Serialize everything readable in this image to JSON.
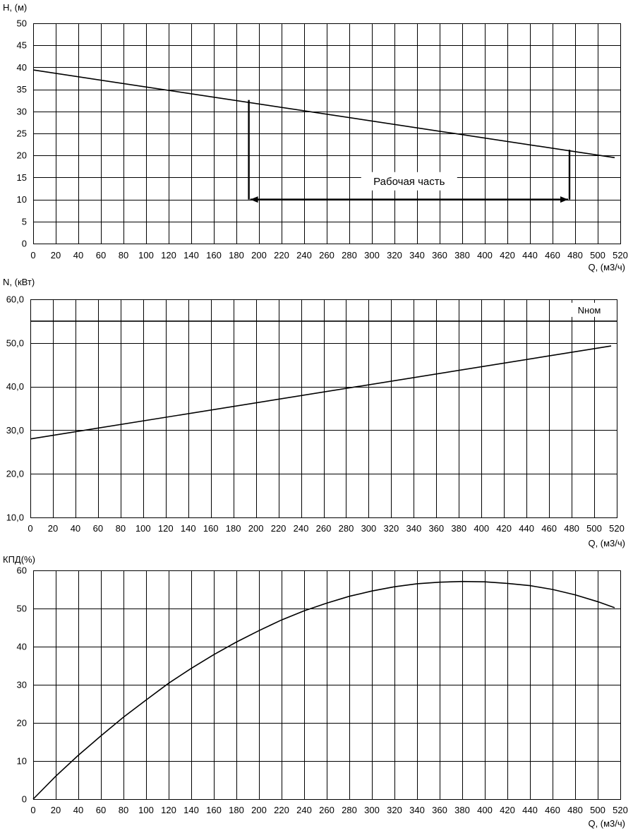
{
  "chart_data": [
    {
      "type": "line",
      "ylabel": "H, (м)",
      "xlabel": "Q, (м3/ч)",
      "xlim": [
        0,
        520
      ],
      "ylim": [
        0,
        50
      ],
      "xticks": [
        0,
        20,
        40,
        60,
        80,
        100,
        120,
        140,
        160,
        180,
        200,
        220,
        240,
        260,
        280,
        300,
        320,
        340,
        360,
        380,
        400,
        420,
        440,
        460,
        480,
        500,
        520
      ],
      "yticks": [
        0,
        5,
        10,
        15,
        20,
        25,
        30,
        35,
        40,
        45,
        50
      ],
      "tick_labels_y": [
        "0",
        "5",
        "10",
        "15",
        "20",
        "25",
        "30",
        "35",
        "40",
        "45",
        "50"
      ],
      "grid": true,
      "series": [
        {
          "x": [
            0,
            515
          ],
          "y": [
            39.4,
            19.5
          ]
        }
      ],
      "annotation": {
        "text": "Рабочая часть",
        "range_x": [
          191,
          475
        ],
        "arrow_y": 10,
        "top_y": [
          32.6,
          21.3
        ]
      }
    },
    {
      "type": "line",
      "ylabel": "N, (кВт)",
      "xlabel": "Q, (м3/ч)",
      "xlim": [
        0,
        520
      ],
      "ylim": [
        10,
        60
      ],
      "xticks": [
        0,
        20,
        40,
        60,
        80,
        100,
        120,
        140,
        160,
        180,
        200,
        220,
        240,
        260,
        280,
        300,
        320,
        340,
        360,
        380,
        400,
        420,
        440,
        460,
        480,
        500,
        520
      ],
      "yticks": [
        10,
        20,
        30,
        40,
        50,
        60
      ],
      "tick_labels_y": [
        "10,0",
        "20,0",
        "30,0",
        "40,0",
        "50,0",
        "60,0"
      ],
      "grid": true,
      "series": [
        {
          "x": [
            0,
            515
          ],
          "y": [
            28.0,
            49.3
          ]
        }
      ],
      "reference_line": {
        "label": "Nном",
        "y": 55
      }
    },
    {
      "type": "line",
      "ylabel": "КПД(%)",
      "xlabel": "Q, (м3/ч)",
      "xlim": [
        0,
        520
      ],
      "ylim": [
        0,
        60
      ],
      "xticks": [
        0,
        20,
        40,
        60,
        80,
        100,
        120,
        140,
        160,
        180,
        200,
        220,
        240,
        260,
        280,
        300,
        320,
        340,
        360,
        380,
        400,
        420,
        440,
        460,
        480,
        500,
        520
      ],
      "yticks": [
        0,
        10,
        20,
        30,
        40,
        50,
        60
      ],
      "tick_labels_y": [
        "0",
        "10",
        "20",
        "30",
        "40",
        "50",
        "60"
      ],
      "grid": true,
      "series": [
        {
          "x": [
            0,
            20,
            40,
            60,
            80,
            100,
            120,
            140,
            160,
            180,
            200,
            220,
            240,
            260,
            280,
            300,
            320,
            340,
            360,
            380,
            400,
            420,
            440,
            460,
            480,
            500,
            515
          ],
          "y": [
            0,
            6,
            11.5,
            16.6,
            21.5,
            26,
            30.4,
            34.3,
            37.9,
            41.2,
            44.2,
            47,
            49.4,
            51.4,
            53.2,
            54.6,
            55.7,
            56.5,
            56.9,
            57.1,
            57,
            56.6,
            56,
            55,
            53.6,
            51.8,
            50.2
          ]
        }
      ]
    }
  ]
}
